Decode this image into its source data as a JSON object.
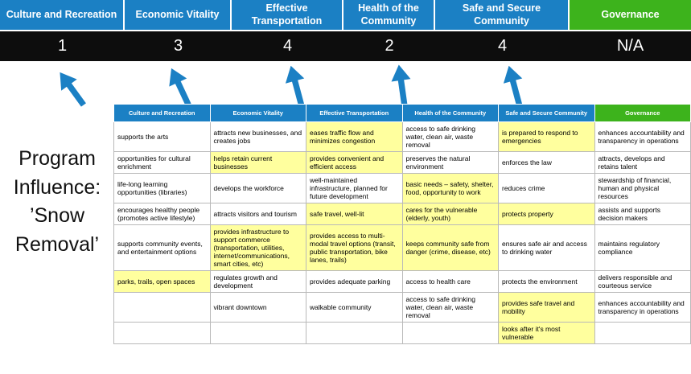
{
  "title": "Program Influence: ’Snow Removal’",
  "colors": {
    "header_blue": "#1b80c4",
    "header_green": "#3db31c",
    "score_band": "#0d0d0d",
    "highlight": "#ffff9e",
    "grid_line": "#b9b9b9",
    "arrow": "#1b80c4"
  },
  "top": {
    "columns": [
      {
        "label": "Culture and Recreation",
        "score": "1"
      },
      {
        "label": "Economic Vitality",
        "score": "3"
      },
      {
        "label": "Effective Transportation",
        "score": "4"
      },
      {
        "label": "Health of the Community",
        "score": "2"
      },
      {
        "label": "Safe and Secure Community",
        "score": "4"
      },
      {
        "label": "Governance",
        "score": "N/A"
      }
    ]
  },
  "matrix": {
    "headers": [
      "Culture and Recreation",
      "Economic Vitality",
      "Effective Transportation",
      "Health of the Community",
      "Safe and Secure Community",
      "Governance"
    ],
    "rows": [
      [
        {
          "text": "supports the arts",
          "hl": false
        },
        {
          "text": "attracts new businesses, and creates jobs",
          "hl": false
        },
        {
          "text": "eases traffic flow and minimizes congestion",
          "hl": true
        },
        {
          "text": "access to safe drinking water, clean air, waste removal",
          "hl": false
        },
        {
          "text": "is prepared to respond to emergencies",
          "hl": true
        },
        {
          "text": "enhances accountability and transparency in operations",
          "hl": false
        }
      ],
      [
        {
          "text": "opportunities for cultural enrichment",
          "hl": false
        },
        {
          "text": "helps retain current businesses",
          "hl": true
        },
        {
          "text": "provides convenient and efficient access",
          "hl": true
        },
        {
          "text": "preserves the natural environment",
          "hl": false
        },
        {
          "text": "enforces the law",
          "hl": false
        },
        {
          "text": "attracts, develops and retains talent",
          "hl": false
        }
      ],
      [
        {
          "text": "life-long learning opportunities (libraries)",
          "hl": false
        },
        {
          "text": "develops the workforce",
          "hl": false
        },
        {
          "text": "well-maintained infrastructure, planned for future development",
          "hl": false
        },
        {
          "text": "basic needs – safety, shelter, food, opportunity to work",
          "hl": true
        },
        {
          "text": "reduces crime",
          "hl": false
        },
        {
          "text": "stewardship of financial, human and physical resources",
          "hl": false
        }
      ],
      [
        {
          "text": "encourages healthy people (promotes active lifestyle)",
          "hl": false
        },
        {
          "text": "attracts visitors and tourism",
          "hl": false
        },
        {
          "text": "safe travel, well-lit",
          "hl": true
        },
        {
          "text": "cares for the vulnerable (elderly, youth)",
          "hl": true
        },
        {
          "text": "protects property",
          "hl": true
        },
        {
          "text": "assists and supports decision makers",
          "hl": false
        }
      ],
      [
        {
          "text": "supports community events, and entertainment options",
          "hl": false
        },
        {
          "text": "provides infrastructure to support commerce (transportation, utilities, internet/communications, smart cities, etc)",
          "hl": true
        },
        {
          "text": "provides access to multi-modal travel options (transit, public transportation, bike lanes, trails)",
          "hl": true
        },
        {
          "text": "keeps community safe from danger (crime, disease, etc)",
          "hl": true
        },
        {
          "text": "ensures safe air and access to drinking water",
          "hl": false
        },
        {
          "text": "maintains regulatory compliance",
          "hl": false
        }
      ],
      [
        {
          "text": "parks, trails, open spaces",
          "hl": true
        },
        {
          "text": "regulates growth and development",
          "hl": false
        },
        {
          "text": "provides adequate parking",
          "hl": false
        },
        {
          "text": "access to health care",
          "hl": false
        },
        {
          "text": "protects the environment",
          "hl": false
        },
        {
          "text": "delivers responsible and courteous service",
          "hl": false
        }
      ],
      [
        {
          "text": "",
          "hl": false
        },
        {
          "text": "vibrant downtown",
          "hl": false
        },
        {
          "text": "walkable community",
          "hl": false
        },
        {
          "text": "access to safe drinking water, clean air, waste removal",
          "hl": false
        },
        {
          "text": "provides safe travel and mobility",
          "hl": true
        },
        {
          "text": "enhances accountability and transparency in operations",
          "hl": false
        }
      ],
      [
        {
          "text": "",
          "hl": false
        },
        {
          "text": "",
          "hl": false
        },
        {
          "text": "",
          "hl": false
        },
        {
          "text": "",
          "hl": false
        },
        {
          "text": "looks after it's most vulnerable",
          "hl": true
        },
        {
          "text": "",
          "hl": false
        }
      ]
    ]
  }
}
